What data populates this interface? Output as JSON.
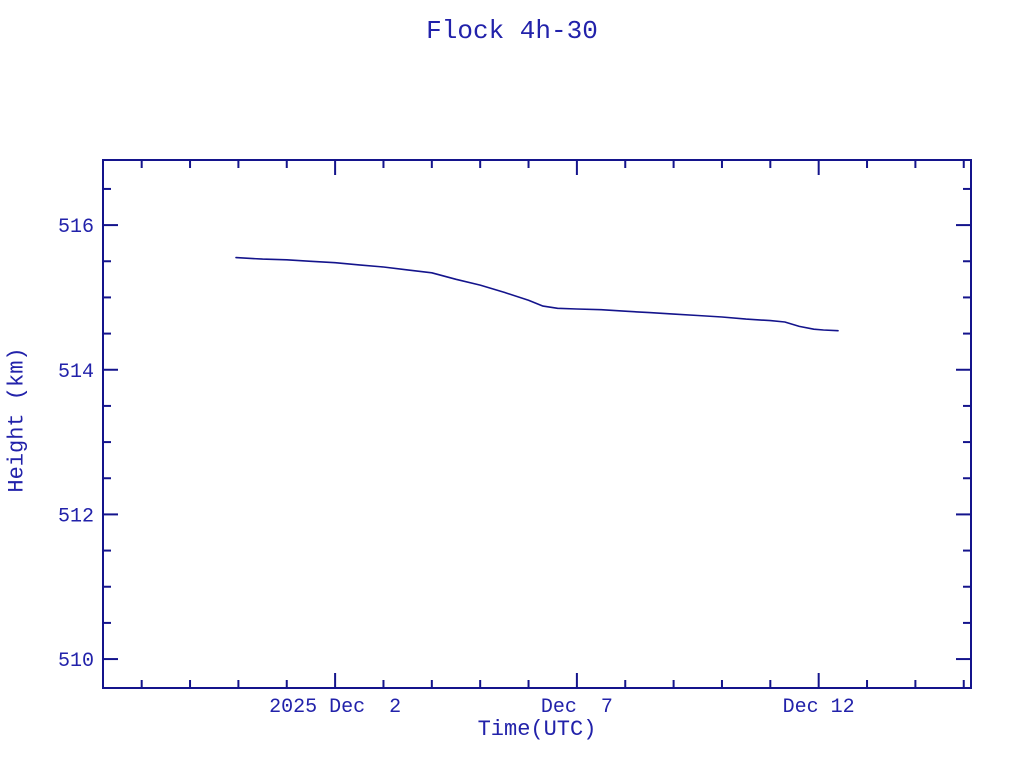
{
  "colors": {
    "background": "#ffffff",
    "axis": "#14148c",
    "text": "#2222aa",
    "line": "#14148c"
  },
  "chart_data": {
    "type": "line",
    "title": "Flock 4h-30",
    "xlabel": "Time(UTC)",
    "ylabel": "Height (km)",
    "grid": false,
    "legend": "none",
    "x_axis": {
      "unit": "days relative to 2025 Dec 2 00:00 UTC",
      "range": [
        -4.8,
        13.15
      ],
      "minor_tick_step_days": 1,
      "major_ticks": [
        {
          "t": 0,
          "label": "2025 Dec  2"
        },
        {
          "t": 5,
          "label": "Dec  7"
        },
        {
          "t": 10,
          "label": "Dec 12"
        }
      ]
    },
    "y_axis": {
      "unit": "km",
      "range": [
        509.6,
        516.9
      ],
      "minor_tick_step_km": 0.5,
      "major_ticks": [
        {
          "v": 510,
          "label": "510"
        },
        {
          "v": 512,
          "label": "512"
        },
        {
          "v": 514,
          "label": "514"
        },
        {
          "v": 516,
          "label": "516"
        }
      ]
    },
    "series": [
      {
        "name": "Flock 4h-30 height",
        "color": "#14148c",
        "points_t_days_h_km": [
          [
            -2.05,
            515.55
          ],
          [
            -1.5,
            515.53
          ],
          [
            -1.0,
            515.52
          ],
          [
            -0.5,
            515.5
          ],
          [
            0.0,
            515.48
          ],
          [
            0.5,
            515.45
          ],
          [
            1.0,
            515.42
          ],
          [
            1.5,
            515.38
          ],
          [
            2.0,
            515.34
          ],
          [
            2.5,
            515.25
          ],
          [
            3.0,
            515.17
          ],
          [
            3.5,
            515.07
          ],
          [
            4.0,
            514.96
          ],
          [
            4.3,
            514.88
          ],
          [
            4.6,
            514.85
          ],
          [
            5.0,
            514.84
          ],
          [
            5.5,
            514.83
          ],
          [
            6.0,
            514.81
          ],
          [
            6.5,
            514.79
          ],
          [
            7.0,
            514.77
          ],
          [
            7.5,
            514.75
          ],
          [
            8.0,
            514.73
          ],
          [
            8.5,
            514.7
          ],
          [
            9.0,
            514.68
          ],
          [
            9.3,
            514.66
          ],
          [
            9.6,
            514.6
          ],
          [
            9.9,
            514.56
          ],
          [
            10.1,
            514.55
          ],
          [
            10.4,
            514.54
          ]
        ]
      }
    ]
  }
}
